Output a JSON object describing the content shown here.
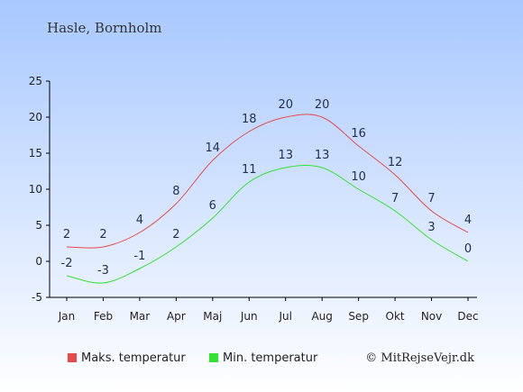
{
  "title": "Hasle, Bornholm",
  "credit": "© MitRejseVejr.dk",
  "colors": {
    "max_series": "#e84a4a",
    "min_series": "#33e233",
    "bg_top": "#a8c8ff",
    "bg_bottom": "#ffffff"
  },
  "chart_data": {
    "type": "line",
    "categories": [
      "Jan",
      "Feb",
      "Mar",
      "Apr",
      "Maj",
      "Jun",
      "Jul",
      "Aug",
      "Sep",
      "Okt",
      "Nov",
      "Dec"
    ],
    "series": [
      {
        "name": "Maks. temperatur",
        "values": [
          2,
          2,
          4,
          8,
          14,
          18,
          20,
          20,
          16,
          12,
          7,
          4
        ]
      },
      {
        "name": "Min. temperatur",
        "values": [
          -2,
          -3,
          -1,
          2,
          6,
          11,
          13,
          13,
          10,
          7,
          3,
          0
        ]
      }
    ],
    "ylim": [
      -5,
      25
    ],
    "yticks": [
      -5,
      0,
      5,
      10,
      15,
      20,
      25
    ],
    "grid": false,
    "legend": "bottom"
  }
}
